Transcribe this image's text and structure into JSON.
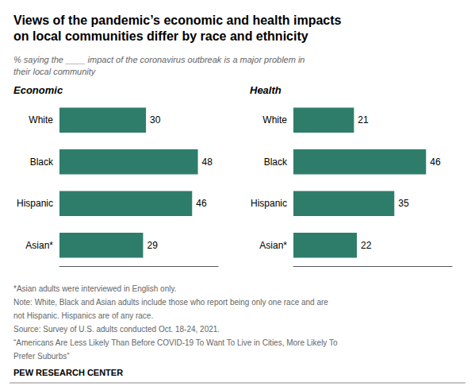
{
  "title": "Views of the pandemic’s economic and health impacts\non local communities differ by race and ethnicity",
  "subtitle": "% saying the ____ impact of the coronavirus outbreak is a major problem in\ntheir local community",
  "footnotes": [
    "*Asian adults were interviewed in English only.",
    "Note: White, Black and Asian adults include those who report being only one race and are",
    "not Hispanic. Hispanics are of any race.",
    "Source: Survey of U.S. adults conducted Oct. 18-24, 2021.",
    "“Americans Are Less Likely Than Before COVID-19 To Want To Live in Cities, More Likely To",
    "Prefer Suburbs”"
  ],
  "source_label": "PEW RESEARCH CENTER",
  "chart_data": [
    {
      "type": "bar",
      "orientation": "horizontal",
      "title": "Economic",
      "categories": [
        "White",
        "Black",
        "Hispanic",
        "Asian*"
      ],
      "values": [
        30,
        48,
        46,
        29
      ],
      "color": "#2e7d6b",
      "xlim": [
        0,
        55
      ],
      "grid": false,
      "data_labels": true,
      "tick_labels": "y"
    },
    {
      "type": "bar",
      "orientation": "horizontal",
      "title": "Health",
      "categories": [
        "White",
        "Black",
        "Hispanic",
        "Asian*"
      ],
      "values": [
        21,
        46,
        35,
        22
      ],
      "color": "#2e7d6b",
      "xlim": [
        0,
        55
      ],
      "grid": false,
      "data_labels": true,
      "tick_labels": "y"
    }
  ]
}
